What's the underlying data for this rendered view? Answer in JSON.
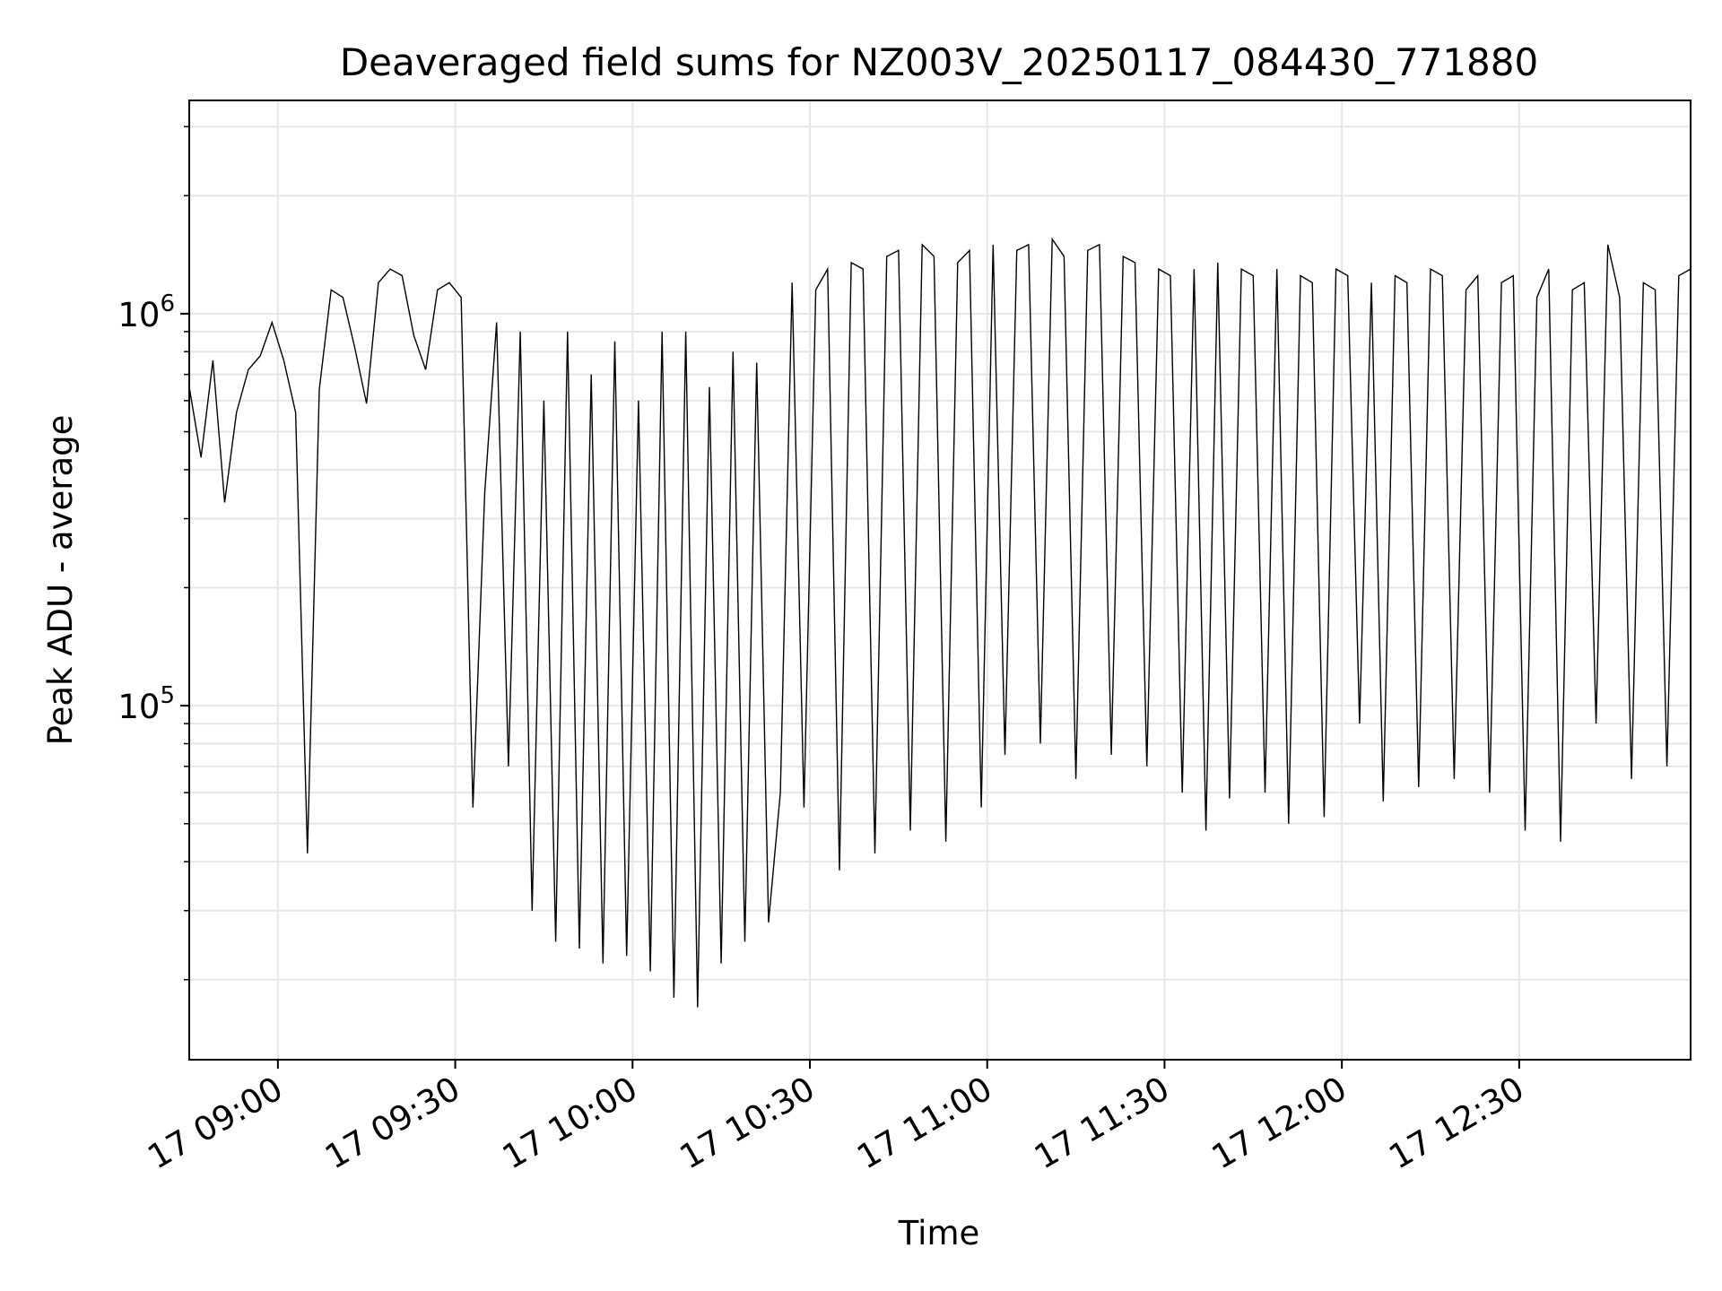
{
  "chart_data": {
    "type": "line",
    "title": "Deaveraged field sums for NZ003V_20250117_084430_771880",
    "xlabel": "Time",
    "ylabel": "Peak ADU - average",
    "yscale": "log",
    "grid": true,
    "xlim": [
      "17 08:45",
      "17 12:59"
    ],
    "ylim": [
      12500,
      3500000
    ],
    "x_ticks": [
      "17 09:00",
      "17 09:30",
      "17 10:00",
      "17 10:30",
      "17 11:00",
      "17 11:30",
      "17 12:00",
      "17 12:30"
    ],
    "y_ticks": [
      {
        "base": "10",
        "exp": "5",
        "value": 100000
      },
      {
        "base": "10",
        "exp": "6",
        "value": 1000000
      }
    ],
    "series_color": "#000000",
    "series": [
      {
        "x": [
          "17 08:45",
          "17 08:47",
          "17 08:49",
          "17 08:51",
          "17 08:53",
          "17 08:55",
          "17 08:57",
          "17 08:59",
          "17 09:01",
          "17 09:03",
          "17 09:05",
          "17 09:07",
          "17 09:09",
          "17 09:11",
          "17 09:13",
          "17 09:15",
          "17 09:17",
          "17 09:19",
          "17 09:21",
          "17 09:23",
          "17 09:25",
          "17 09:27",
          "17 09:29",
          "17 09:31",
          "17 09:33",
          "17 09:35",
          "17 09:37",
          "17 09:39",
          "17 09:41",
          "17 09:43",
          "17 09:45",
          "17 09:47",
          "17 09:49",
          "17 09:51",
          "17 09:53",
          "17 09:55",
          "17 09:57",
          "17 09:59",
          "17 10:01",
          "17 10:03",
          "17 10:05",
          "17 10:07",
          "17 10:09",
          "17 10:11",
          "17 10:13",
          "17 10:15",
          "17 10:17",
          "17 10:19",
          "17 10:21",
          "17 10:23",
          "17 10:25",
          "17 10:27",
          "17 10:29",
          "17 10:31",
          "17 10:33",
          "17 10:35",
          "17 10:37",
          "17 10:39",
          "17 10:41",
          "17 10:43",
          "17 10:45",
          "17 10:47",
          "17 10:49",
          "17 10:51",
          "17 10:53",
          "17 10:55",
          "17 10:57",
          "17 10:59",
          "17 11:01",
          "17 11:03",
          "17 11:05",
          "17 11:07",
          "17 11:09",
          "17 11:11",
          "17 11:13",
          "17 11:15",
          "17 11:17",
          "17 11:19",
          "17 11:21",
          "17 11:23",
          "17 11:25",
          "17 11:27",
          "17 11:29",
          "17 11:31",
          "17 11:33",
          "17 11:35",
          "17 11:37",
          "17 11:39",
          "17 11:41",
          "17 11:43",
          "17 11:45",
          "17 11:47",
          "17 11:49",
          "17 11:51",
          "17 11:53",
          "17 11:55",
          "17 11:57",
          "17 11:59",
          "17 12:01",
          "17 12:03",
          "17 12:05",
          "17 12:07",
          "17 12:09",
          "17 12:11",
          "17 12:13",
          "17 12:15",
          "17 12:17",
          "17 12:19",
          "17 12:21",
          "17 12:23",
          "17 12:25",
          "17 12:27",
          "17 12:29",
          "17 12:31",
          "17 12:33",
          "17 12:35",
          "17 12:37",
          "17 12:39",
          "17 12:41",
          "17 12:43",
          "17 12:45",
          "17 12:47",
          "17 12:49",
          "17 12:51",
          "17 12:53",
          "17 12:55",
          "17 12:57",
          "17 12:59"
        ],
        "y": [
          650000,
          430000,
          760000,
          330000,
          560000,
          720000,
          780000,
          950000,
          760000,
          560000,
          42000,
          640000,
          1150000,
          1100000,
          820000,
          590000,
          1200000,
          1300000,
          1250000,
          880000,
          720000,
          1150000,
          1200000,
          1100000,
          55000,
          350000,
          950000,
          70000,
          900000,
          30000,
          600000,
          25000,
          900000,
          24000,
          700000,
          22000,
          850000,
          23000,
          600000,
          21000,
          900000,
          18000,
          900000,
          17000,
          650000,
          22000,
          800000,
          25000,
          750000,
          28000,
          60000,
          1200000,
          55000,
          1150000,
          1300000,
          38000,
          1350000,
          1300000,
          42000,
          1400000,
          1450000,
          48000,
          1500000,
          1400000,
          45000,
          1350000,
          1450000,
          55000,
          1500000,
          75000,
          1450000,
          1500000,
          80000,
          1550000,
          1400000,
          65000,
          1450000,
          1500000,
          75000,
          1400000,
          1350000,
          70000,
          1300000,
          1250000,
          60000,
          1300000,
          48000,
          1350000,
          58000,
          1300000,
          1250000,
          60000,
          1300000,
          50000,
          1250000,
          1200000,
          52000,
          1300000,
          1250000,
          90000,
          1200000,
          57000,
          1250000,
          1200000,
          62000,
          1300000,
          1250000,
          65000,
          1150000,
          1250000,
          60000,
          1200000,
          1250000,
          48000,
          1100000,
          1300000,
          45000,
          1150000,
          1200000,
          90000,
          1500000,
          1100000,
          65000,
          1200000,
          1150000,
          70000,
          1250000,
          1300000
        ]
      }
    ]
  }
}
